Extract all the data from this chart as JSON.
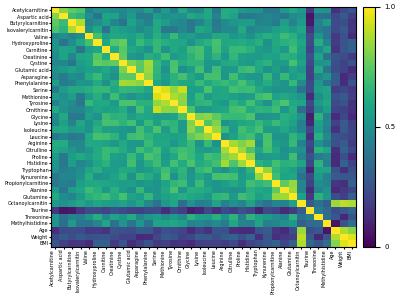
{
  "labels": [
    "Acetylcarnitine",
    "Aspartic acid",
    "Butyrylcarnitine",
    "Isovalerylcarnitin",
    "Valine",
    "Hydroxyproline",
    "Carnitine",
    "Creatinine",
    "Cystine",
    "Glutamic acid",
    "Asparagine",
    "Phenylalanine",
    "Serine",
    "Methionine",
    "Tyrosine",
    "Ornithine",
    "Glycine",
    "Lysine",
    "Isoleucine",
    "Leucine",
    "Arginine",
    "Citrulline",
    "Proline",
    "Histidine",
    "Tryptophan",
    "Kynurenine",
    "Propionylcarnitine",
    "Alanine",
    "Glutamine",
    "Octanoylcarnitin",
    "Taurine",
    "Threonine",
    "Methylhistidine",
    "Age",
    "Weight",
    "BMI"
  ],
  "colormap": "viridis",
  "vmin": 0,
  "vmax": 1,
  "figsize": [
    4.0,
    2.98
  ],
  "dpi": 100,
  "tick_fontsize": 3.5,
  "cbar_fontsize": 5
}
